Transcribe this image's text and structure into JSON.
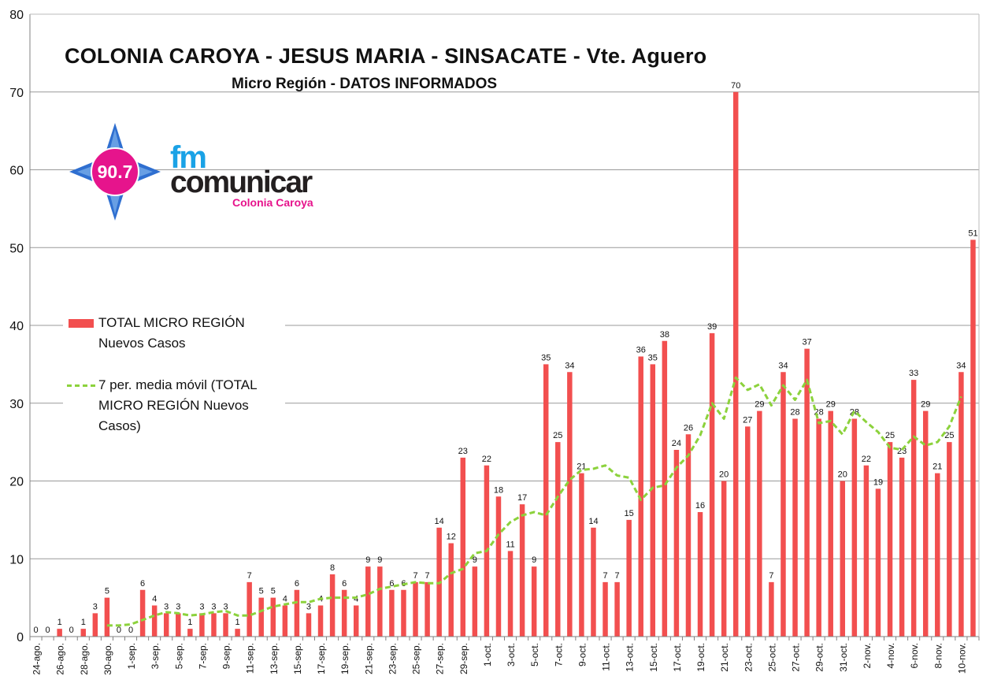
{
  "header": {
    "title": "COLONIA CAROYA - JESUS MARIA - SINSACATE - Vte. Aguero",
    "subtitle": "Micro Región - DATOS INFORMADOS"
  },
  "logo": {
    "frequency": "90.7",
    "fm": "fm",
    "name": "comunicar",
    "location": "Colonia Caroya"
  },
  "colors": {
    "bar": "#f24f4f",
    "moving_average": "#8cd23c",
    "grid": "#999999",
    "logo_pink": "#e6148c",
    "logo_blue": "#1aa2e6"
  },
  "legend": {
    "bar_label_line1": "TOTAL MICRO REGIÓN",
    "bar_label_line2": "Nuevos Casos",
    "ma_label_line1": "7 per. media móvil (TOTAL",
    "ma_label_line2": "MICRO REGIÓN Nuevos",
    "ma_label_line3": "Casos)"
  },
  "chart_data": {
    "type": "bar",
    "title": "COLONIA CAROYA - JESUS MARIA - SINSACATE - Vte. Aguero",
    "subtitle": "Micro Región - DATOS INFORMADOS",
    "ylim": [
      0,
      80
    ],
    "yticks": [
      0,
      10,
      20,
      30,
      40,
      50,
      60,
      70,
      80
    ],
    "grid": true,
    "legend_position": "left",
    "x_tick_labels": [
      "24-ago.",
      "26-ago.",
      "28-ago.",
      "30-ago.",
      "1-sep.",
      "3-sep.",
      "5-sep.",
      "7-sep.",
      "9-sep.",
      "11-sep.",
      "13-sep.",
      "15-sep.",
      "17-sep.",
      "19-sep.",
      "21-sep.",
      "23-sep.",
      "25-sep.",
      "27-sep.",
      "29-sep.",
      "1-oct.",
      "3-oct.",
      "5-oct.",
      "7-oct.",
      "9-oct.",
      "11-oct.",
      "13-oct.",
      "15-oct.",
      "17-oct.",
      "19-oct.",
      "21-oct.",
      "23-oct.",
      "25-oct.",
      "27-oct.",
      "29-oct.",
      "31-oct.",
      "2-nov.",
      "4-nov.",
      "6-nov.",
      "8-nov.",
      "10-nov."
    ],
    "series": [
      {
        "name": "TOTAL MICRO REGIÓN Nuevos Casos",
        "type": "bar",
        "values": [
          0,
          0,
          1,
          0,
          1,
          3,
          5,
          0,
          0,
          6,
          4,
          3,
          3,
          1,
          3,
          3,
          3,
          1,
          7,
          5,
          5,
          4,
          6,
          3,
          4,
          8,
          6,
          4,
          9,
          9,
          6,
          6,
          7,
          7,
          14,
          12,
          23,
          9,
          22,
          18,
          11,
          17,
          9,
          35,
          25,
          34,
          21,
          14,
          7,
          7,
          15,
          36,
          35,
          38,
          24,
          26,
          16,
          39,
          20,
          70,
          27,
          29,
          7,
          34,
          28,
          37,
          28,
          29,
          20,
          28,
          22,
          19,
          25,
          23,
          33,
          29,
          21,
          25,
          34,
          51
        ]
      },
      {
        "name": "7 per. media móvil (TOTAL MICRO REGIÓN Nuevos Casos)",
        "type": "line",
        "start_index": 6,
        "values": [
          1.43,
          1.43,
          1.57,
          2.14,
          2.71,
          3.14,
          3.0,
          2.71,
          2.86,
          3.14,
          3.29,
          2.71,
          2.71,
          3.29,
          3.86,
          4.14,
          4.43,
          4.43,
          4.86,
          5.0,
          5.0,
          5.0,
          5.43,
          6.14,
          6.43,
          6.71,
          7.0,
          6.86,
          6.86,
          8.14,
          8.71,
          10.71,
          11.0,
          13.14,
          14.71,
          15.57,
          16.0,
          15.57,
          18.0,
          20.14,
          21.43,
          21.57,
          22.0,
          20.71,
          20.43,
          17.57,
          19.14,
          19.43,
          21.71,
          23.29,
          25.86,
          30.0,
          28.0,
          33.29,
          31.71,
          32.43,
          29.71,
          32.29,
          30.43,
          33.0,
          27.43,
          27.71,
          26.0,
          29.0,
          27.57,
          26.29,
          24.29,
          24.0,
          25.71,
          24.57,
          25.0,
          27.0,
          30.86
        ]
      }
    ]
  }
}
